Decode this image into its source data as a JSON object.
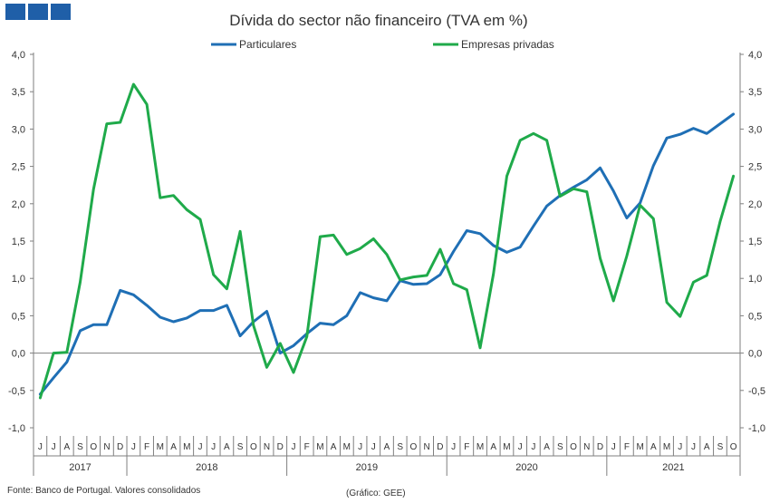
{
  "logo": {
    "color": "#1f5fa8"
  },
  "chart_data": {
    "type": "line",
    "title": "Dívida do sector não financeiro (TVA em %)",
    "ylim": [
      -1.0,
      4.0
    ],
    "yticks": [
      "4,0",
      "3,5",
      "3,0",
      "2,5",
      "2,0",
      "1,5",
      "1,0",
      "0,5",
      "0,0",
      "-0,5",
      "-1,0"
    ],
    "months": [
      "J",
      "J",
      "A",
      "S",
      "O",
      "N",
      "D",
      "J",
      "F",
      "M",
      "A",
      "M",
      "J",
      "J",
      "A",
      "S",
      "O",
      "N",
      "D",
      "J",
      "F",
      "M",
      "A",
      "M",
      "J",
      "J",
      "A",
      "S",
      "O",
      "N",
      "D",
      "J",
      "F",
      "M",
      "A",
      "M",
      "J",
      "J",
      "A",
      "S",
      "O",
      "N",
      "D",
      "J",
      "F",
      "M",
      "A",
      "M",
      "J",
      "J",
      "A",
      "S",
      "O"
    ],
    "years": [
      {
        "label": "2017",
        "start": 0,
        "end": 6
      },
      {
        "label": "2018",
        "start": 7,
        "end": 18
      },
      {
        "label": "2019",
        "start": 19,
        "end": 30
      },
      {
        "label": "2020",
        "start": 31,
        "end": 42
      },
      {
        "label": "2021",
        "start": 43,
        "end": 52
      }
    ],
    "grid": false,
    "legend_position": "top",
    "series": [
      {
        "name": "Particulares",
        "color": "#1f6fb5",
        "values": [
          -0.55,
          -0.33,
          -0.12,
          0.3,
          0.38,
          0.38,
          0.84,
          0.78,
          0.64,
          0.48,
          0.42,
          0.47,
          0.57,
          0.57,
          0.64,
          0.23,
          0.42,
          0.56,
          0.0,
          0.1,
          0.26,
          0.4,
          0.38,
          0.5,
          0.81,
          0.74,
          0.7,
          0.97,
          0.92,
          0.93,
          1.05,
          1.36,
          1.64,
          1.6,
          1.44,
          1.35,
          1.42,
          1.7,
          1.97,
          2.11,
          2.22,
          2.32,
          2.48,
          2.17,
          1.81,
          2.01,
          2.51,
          2.88,
          2.93,
          3.01,
          2.94,
          3.07,
          3.2
        ]
      },
      {
        "name": "Empresas privadas",
        "color": "#1faa4a",
        "values": [
          -0.6,
          0.0,
          0.01,
          0.95,
          2.19,
          3.07,
          3.09,
          3.6,
          3.33,
          2.08,
          2.11,
          1.92,
          1.79,
          1.05,
          0.86,
          1.63,
          0.37,
          -0.19,
          0.13,
          -0.26,
          0.22,
          1.56,
          1.58,
          1.32,
          1.4,
          1.53,
          1.32,
          0.98,
          1.02,
          1.04,
          1.39,
          0.93,
          0.85,
          0.07,
          1.06,
          2.37,
          2.85,
          2.94,
          2.85,
          2.1,
          2.2,
          2.16,
          1.27,
          0.7,
          1.3,
          1.98,
          1.8,
          0.68,
          0.49,
          0.95,
          1.04,
          1.76,
          2.37
        ]
      }
    ]
  },
  "footer": {
    "source": "Fonte: Banco de Portugal. Valores consolidados",
    "credit": "(Gráfico: GEE)"
  }
}
